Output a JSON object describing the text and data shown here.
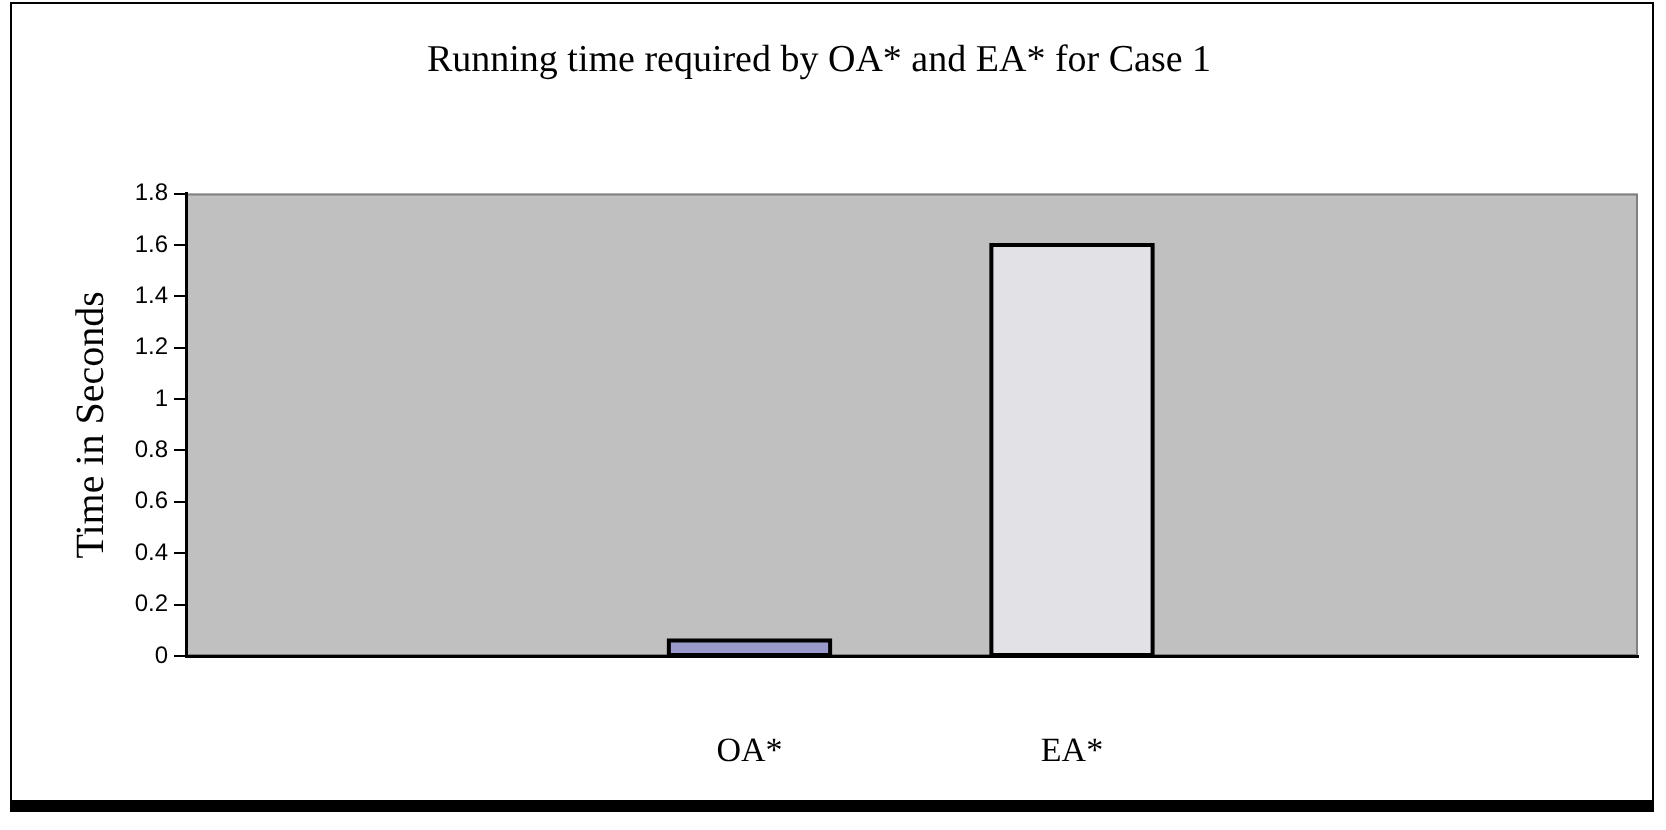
{
  "chart_data": {
    "type": "bar",
    "title": "Running time required by OA* and EA* for Case 1",
    "ylabel": "Time in Seconds",
    "categories": [
      "OA*",
      "EA*"
    ],
    "values": [
      0.06,
      1.6
    ],
    "colors": [
      "#9999cc",
      "#e2e2e6"
    ],
    "ylim": [
      0,
      1.8
    ],
    "yticks": [
      0,
      0.2,
      0.4,
      0.6,
      0.8,
      1,
      1.2,
      1.4,
      1.6,
      1.8
    ]
  }
}
